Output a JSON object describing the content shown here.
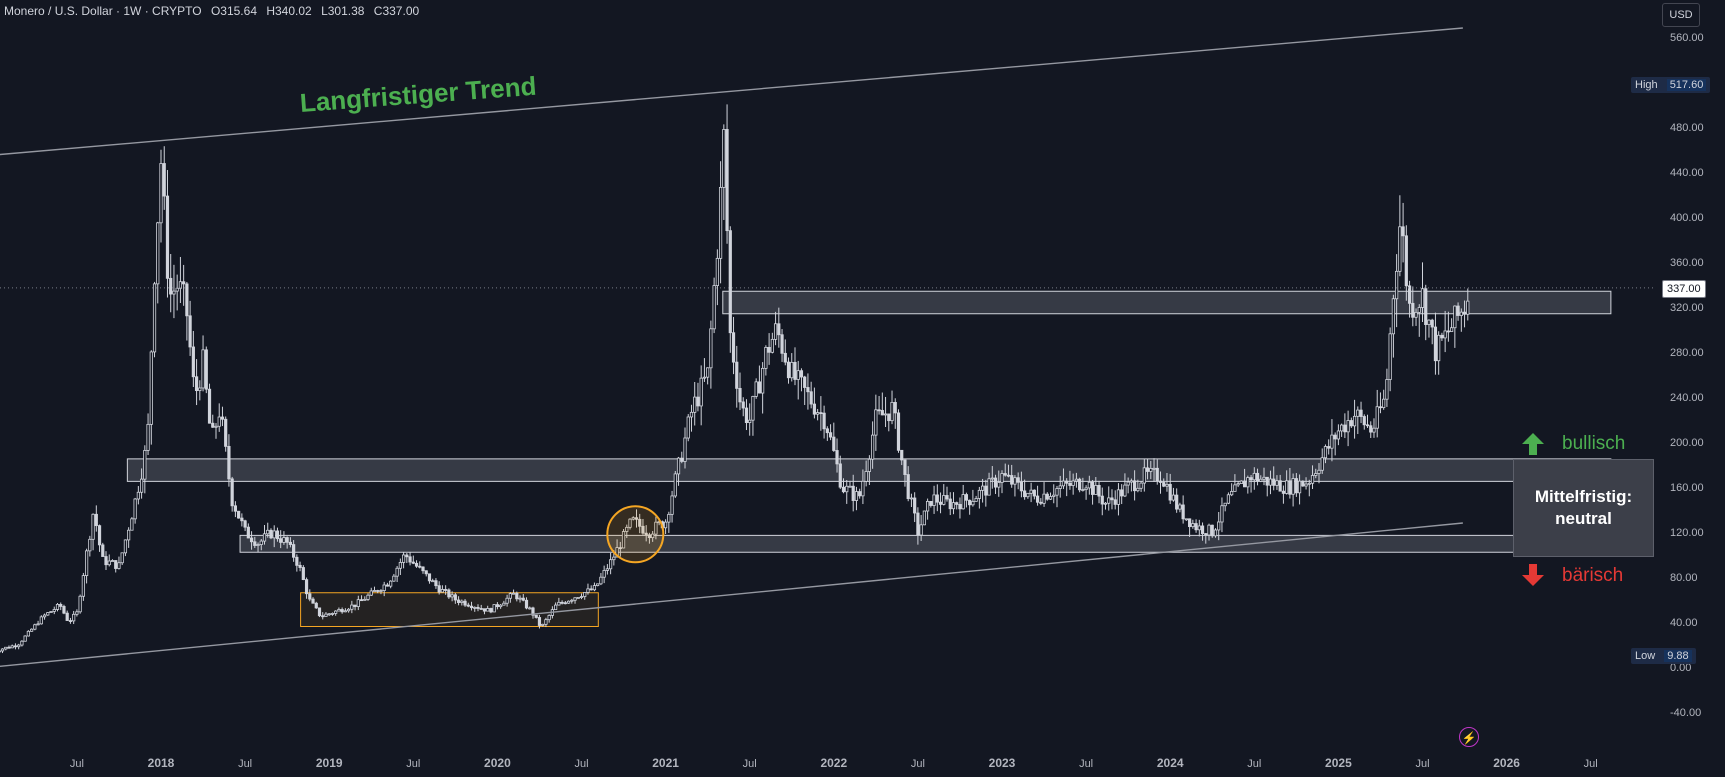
{
  "header": {
    "symbol": "Monero / U.S. Dollar · 1W · CRYPTO",
    "open": "O315.64",
    "high": "H340.02",
    "low": "L301.38",
    "close": "C337.00"
  },
  "currency": "USD",
  "chart_data": {
    "type": "candlestick",
    "title": "",
    "ylim": [
      -60,
      580
    ],
    "y_ticks": [
      "560.00",
      "480.00",
      "440.00",
      "400.00",
      "360.00",
      "320.00",
      "280.00",
      "240.00",
      "200.00",
      "160.00",
      "120.00",
      "80.00",
      "40.00",
      "0.00",
      "-40.00"
    ],
    "x_ticks": [
      "Jul",
      "2018",
      "Jul",
      "2019",
      "Jul",
      "2020",
      "Jul",
      "2021",
      "Jul",
      "2022",
      "Jul",
      "2023",
      "Jul",
      "2024",
      "Jul",
      "2025",
      "Jul",
      "2026",
      "Jul"
    ],
    "x_tick_dates": [
      2017.5,
      2018.0,
      2018.5,
      2019.0,
      2019.5,
      2020.0,
      2020.5,
      2021.0,
      2021.5,
      2022.0,
      2022.5,
      2023.0,
      2023.5,
      2024.0,
      2024.5,
      2025.0,
      2025.5,
      2026.0,
      2026.5
    ],
    "price_labels": {
      "high_label": "High",
      "high_value": "517.60",
      "high": 517.6,
      "low_label": "Low",
      "low_value": "9.88",
      "low": 9.88,
      "last_value": "337.00",
      "last": 337.0
    },
    "price_path": [
      [
        2017.0,
        14
      ],
      [
        2017.15,
        20
      ],
      [
        2017.3,
        45
      ],
      [
        2017.4,
        55
      ],
      [
        2017.45,
        40
      ],
      [
        2017.5,
        48
      ],
      [
        2017.6,
        140
      ],
      [
        2017.65,
        95
      ],
      [
        2017.75,
        90
      ],
      [
        2017.85,
        150
      ],
      [
        2017.92,
        200
      ],
      [
        2017.96,
        350
      ],
      [
        2018.0,
        450
      ],
      [
        2018.05,
        330
      ],
      [
        2018.1,
        340
      ],
      [
        2018.15,
        320
      ],
      [
        2018.2,
        240
      ],
      [
        2018.25,
        270
      ],
      [
        2018.3,
        200
      ],
      [
        2018.35,
        230
      ],
      [
        2018.42,
        150
      ],
      [
        2018.5,
        120
      ],
      [
        2018.58,
        110
      ],
      [
        2018.66,
        120
      ],
      [
        2018.75,
        110
      ],
      [
        2018.82,
        90
      ],
      [
        2018.88,
        60
      ],
      [
        2018.95,
        45
      ],
      [
        2019.05,
        50
      ],
      [
        2019.15,
        55
      ],
      [
        2019.25,
        65
      ],
      [
        2019.35,
        75
      ],
      [
        2019.45,
        100
      ],
      [
        2019.55,
        85
      ],
      [
        2019.65,
        70
      ],
      [
        2019.75,
        60
      ],
      [
        2019.85,
        55
      ],
      [
        2019.95,
        50
      ],
      [
        2020.1,
        65
      ],
      [
        2020.2,
        50
      ],
      [
        2020.26,
        35
      ],
      [
        2020.35,
        55
      ],
      [
        2020.5,
        65
      ],
      [
        2020.58,
        70
      ],
      [
        2020.68,
        95
      ],
      [
        2020.8,
        130
      ],
      [
        2020.9,
        120
      ],
      [
        2021.0,
        130
      ],
      [
        2021.08,
        180
      ],
      [
        2021.16,
        230
      ],
      [
        2021.25,
        260
      ],
      [
        2021.32,
        400
      ],
      [
        2021.35,
        480
      ],
      [
        2021.38,
        300
      ],
      [
        2021.45,
        230
      ],
      [
        2021.5,
        220
      ],
      [
        2021.6,
        280
      ],
      [
        2021.66,
        300
      ],
      [
        2021.75,
        260
      ],
      [
        2021.85,
        240
      ],
      [
        2021.95,
        220
      ],
      [
        2022.05,
        160
      ],
      [
        2022.15,
        150
      ],
      [
        2022.25,
        220
      ],
      [
        2022.35,
        230
      ],
      [
        2022.42,
        170
      ],
      [
        2022.5,
        120
      ],
      [
        2022.58,
        150
      ],
      [
        2022.7,
        145
      ],
      [
        2022.82,
        150
      ],
      [
        2022.92,
        160
      ],
      [
        2023.0,
        170
      ],
      [
        2023.1,
        160
      ],
      [
        2023.2,
        150
      ],
      [
        2023.35,
        160
      ],
      [
        2023.5,
        165
      ],
      [
        2023.62,
        145
      ],
      [
        2023.75,
        160
      ],
      [
        2023.85,
        170
      ],
      [
        2023.95,
        170
      ],
      [
        2024.05,
        140
      ],
      [
        2024.15,
        125
      ],
      [
        2024.25,
        120
      ],
      [
        2024.35,
        150
      ],
      [
        2024.48,
        170
      ],
      [
        2024.58,
        165
      ],
      [
        2024.7,
        160
      ],
      [
        2024.82,
        165
      ],
      [
        2024.92,
        190
      ],
      [
        2025.0,
        210
      ],
      [
        2025.1,
        225
      ],
      [
        2025.2,
        210
      ],
      [
        2025.28,
        240
      ],
      [
        2025.33,
        340
      ],
      [
        2025.37,
        400
      ],
      [
        2025.42,
        320
      ],
      [
        2025.5,
        330
      ],
      [
        2025.58,
        280
      ],
      [
        2025.66,
        300
      ],
      [
        2025.75,
        320
      ],
      [
        2025.78,
        337
      ]
    ],
    "zones": [
      {
        "x0": 2017.8,
        "x1": 2026.62,
        "y0": 165,
        "y1": 185
      },
      {
        "x0": 2018.47,
        "x1": 2026.62,
        "y0": 102,
        "y1": 117
      },
      {
        "x0": 2021.34,
        "x1": 2026.62,
        "y0": 314,
        "y1": 334
      },
      {
        "x0": 2018.83,
        "x1": 2020.6,
        "y0": 36,
        "y1": 66
      }
    ],
    "trend_lines": [
      {
        "x0": 2017.0,
        "y0": 455,
        "x1": 2025.74,
        "y1": 568
      },
      {
        "x0": 2017.0,
        "y0": 0,
        "x1": 2025.74,
        "y1": 128
      }
    ],
    "highlight_circle": {
      "x": 2020.82,
      "y": 118
    }
  },
  "annotations": {
    "trend_title": "Langfristiger Trend",
    "bullish": "bullisch",
    "bearish": "bärisch",
    "midterm_line1": "Mittelfristig:",
    "midterm_line2": "neutral"
  },
  "colors": {
    "background": "#131722",
    "candle": "#d1d4dc",
    "zone_fill": "#3b3f4a",
    "bull": "#4caf50",
    "bear": "#e53935",
    "highlight": "#f5a623"
  }
}
